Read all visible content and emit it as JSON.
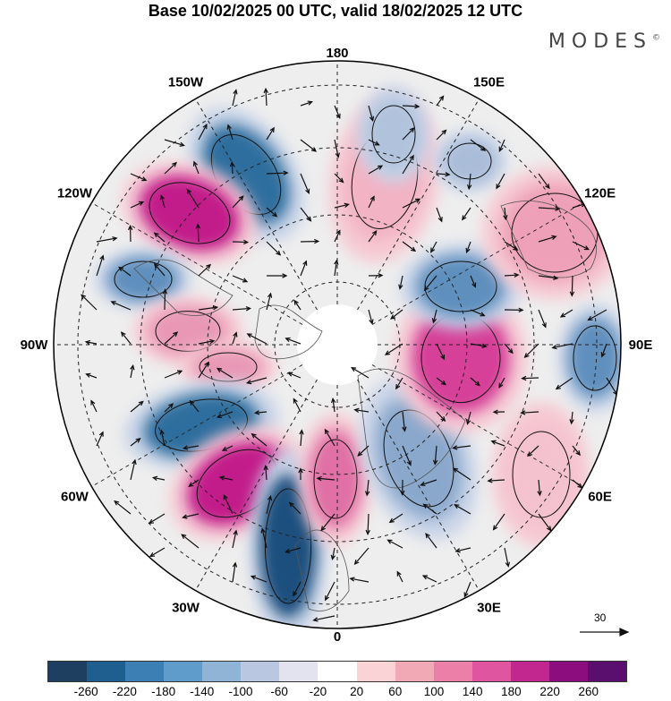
{
  "title": "Base 10/02/2025 00 UTC, valid 18/02/2025 12 UTC",
  "brand": {
    "name": "MODES",
    "mark": "©"
  },
  "longitude_labels": [
    "180",
    "150E",
    "120E",
    "90E",
    "60E",
    "30E",
    "0",
    "30W",
    "60W",
    "90W",
    "120W",
    "150W"
  ],
  "wind_scale": {
    "label": "30",
    "icon": "arrow-right-icon"
  },
  "colorbar": {
    "colors": [
      "#1e3f5f",
      "#1f5f8f",
      "#3b7fb5",
      "#5f9ccb",
      "#8fb4d6",
      "#b9c7e0",
      "#e2e3ef",
      "#ffffff",
      "#f9d3d6",
      "#f2a9b6",
      "#ec7fa8",
      "#e0559f",
      "#c2278f",
      "#8c0d7e",
      "#5a0e6e"
    ],
    "tick_labels": [
      "-260",
      "-220",
      "-180",
      "-140",
      "-100",
      "-60",
      "-20",
      "20",
      "60",
      "100",
      "140",
      "180",
      "220",
      "260"
    ]
  },
  "anomaly_centers": [
    {
      "sign": "negative",
      "value": -220,
      "color": "#2f6e9e"
    },
    {
      "sign": "positive",
      "value": 220,
      "color": "#c21f8a"
    },
    {
      "sign": "negative",
      "value": -140,
      "color": "#5f8fbd"
    },
    {
      "sign": "positive",
      "value": 100,
      "color": "#e898b5"
    },
    {
      "sign": "positive",
      "value": 100,
      "color": "#e898b5"
    },
    {
      "sign": "negative",
      "value": -220,
      "color": "#2f6e9e"
    },
    {
      "sign": "positive",
      "value": 220,
      "color": "#c21f8a"
    },
    {
      "sign": "negative",
      "value": -260,
      "color": "#1f4f7e"
    },
    {
      "sign": "positive",
      "value": 140,
      "color": "#e070a5"
    },
    {
      "sign": "negative",
      "value": -100,
      "color": "#8aa8cc"
    },
    {
      "sign": "positive",
      "value": 180,
      "color": "#d63f98"
    },
    {
      "sign": "negative",
      "value": -140,
      "color": "#5f8fbd"
    },
    {
      "sign": "negative",
      "value": -140,
      "color": "#5f8fbd"
    },
    {
      "sign": "positive",
      "value": 60,
      "color": "#f2b3c4"
    },
    {
      "sign": "negative",
      "value": -60,
      "color": "#a9bcd8"
    },
    {
      "sign": "positive",
      "value": 100,
      "color": "#eea0b8"
    },
    {
      "sign": "positive",
      "value": 60,
      "color": "#f4c2cf"
    },
    {
      "sign": "negative",
      "value": -60,
      "color": "#b0c2dc"
    }
  ]
}
